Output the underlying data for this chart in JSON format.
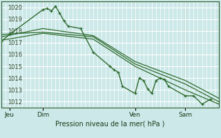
{
  "bg_color": "#cce8e8",
  "grid_color": "#ffffff",
  "line_color": "#2d6a2d",
  "marker_color": "#2d6a2d",
  "xlabel": "Pression niveau de la mer( hPa )",
  "ylim": [
    1011.5,
    1020.5
  ],
  "yticks": [
    1012,
    1013,
    1014,
    1015,
    1016,
    1017,
    1018,
    1019,
    1020
  ],
  "xtick_labels": [
    "Jeu",
    "Dim",
    "Ven",
    "Sam"
  ],
  "xtick_positions": [
    2,
    10,
    32,
    44
  ],
  "xlim": [
    0,
    52
  ],
  "series1": {
    "x": [
      0,
      2,
      10,
      11,
      12,
      13,
      14,
      15,
      16,
      19,
      22,
      26,
      27,
      28,
      29,
      32,
      33,
      34,
      35,
      36,
      37,
      38,
      39,
      40,
      44,
      46,
      48,
      50
    ],
    "y": [
      1017.1,
      1017.7,
      1019.8,
      1019.9,
      1019.7,
      1020.1,
      1019.5,
      1018.85,
      1018.4,
      1018.2,
      1016.2,
      1015.0,
      1014.7,
      1014.5,
      1013.3,
      1012.7,
      1014.0,
      1013.8,
      1013.1,
      1012.7,
      1013.8,
      1014.0,
      1013.9,
      1013.3,
      1012.5,
      1012.5,
      1011.8,
      1012.2
    ]
  },
  "series2": {
    "x": [
      0,
      10,
      22,
      32,
      44,
      52
    ],
    "y": [
      1017.7,
      1017.9,
      1017.5,
      1015.2,
      1013.5,
      1012.0
    ]
  },
  "series3": {
    "x": [
      0,
      10,
      22,
      32,
      44,
      52
    ],
    "y": [
      1017.2,
      1017.8,
      1017.3,
      1015.0,
      1013.0,
      1011.8
    ]
  },
  "series4": {
    "x": [
      0,
      10,
      22,
      32,
      44,
      52
    ],
    "y": [
      1017.5,
      1018.2,
      1017.6,
      1015.4,
      1013.8,
      1012.3
    ]
  },
  "vlines": [
    10,
    32,
    44
  ],
  "ytick_fontsize": 6.0,
  "xtick_fontsize": 6.5,
  "xlabel_fontsize": 7.0
}
